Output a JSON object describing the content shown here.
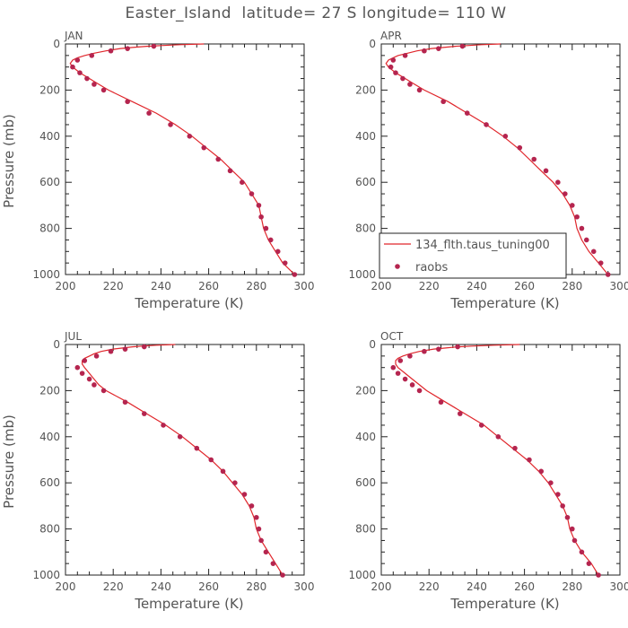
{
  "colors": {
    "model": "#e0262b",
    "obs": "#b5254f",
    "text": "#555555"
  },
  "chart_data": {
    "type": "line",
    "title": "Easter_Island  latitude= 27 S longitude= 110 W",
    "xlabel": "Temperature (K)",
    "ylabel": "Pressure (mb)",
    "xlim": [
      200,
      300
    ],
    "ylim": [
      1000,
      0
    ],
    "x_ticks": [
      200,
      220,
      240,
      260,
      280,
      300
    ],
    "y_ticks": [
      0,
      200,
      400,
      600,
      800,
      1000
    ],
    "legend": {
      "placement": "bottom-right of APR panel",
      "entries": [
        "134_flth.taus_tuning00",
        "raobs"
      ]
    },
    "panels": [
      {
        "name": "JAN",
        "model": {
          "pressure": [
            0,
            3,
            7,
            10,
            15,
            20,
            30,
            40,
            50,
            60,
            70,
            85,
            100,
            125,
            150,
            175,
            200,
            250,
            300,
            350,
            400,
            450,
            500,
            550,
            600,
            650,
            700,
            750,
            800,
            850,
            900,
            950,
            1000
          ],
          "temperature": [
            258,
            248,
            240,
            234,
            228,
            223,
            217,
            212,
            208,
            205,
            203,
            202,
            203,
            206,
            210,
            214,
            218,
            228,
            238,
            246,
            253,
            259,
            265,
            270,
            275,
            278,
            281,
            282,
            283,
            285,
            288,
            291,
            296
          ]
        },
        "obs": {
          "pressure": [
            10,
            20,
            30,
            50,
            70,
            100,
            125,
            150,
            175,
            200,
            250,
            300,
            350,
            400,
            450,
            500,
            550,
            600,
            650,
            700,
            750,
            800,
            850,
            900,
            950,
            1000
          ],
          "temperature": [
            237,
            226,
            219,
            211,
            205,
            203,
            206,
            209,
            212,
            216,
            226,
            235,
            244,
            252,
            258,
            264,
            269,
            274,
            278,
            281,
            282,
            284,
            286,
            289,
            292,
            296
          ]
        }
      },
      {
        "name": "APR",
        "model": {
          "pressure": [
            0,
            3,
            7,
            10,
            15,
            20,
            30,
            40,
            50,
            60,
            70,
            85,
            100,
            125,
            150,
            175,
            200,
            250,
            300,
            350,
            400,
            450,
            500,
            550,
            600,
            650,
            700,
            750,
            800,
            850,
            900,
            950,
            1000
          ],
          "temperature": [
            250,
            242,
            236,
            231,
            226,
            221,
            215,
            211,
            207,
            205,
            203,
            202,
            203,
            206,
            210,
            214,
            218,
            228,
            236,
            244,
            251,
            257,
            262,
            267,
            272,
            276,
            279,
            281,
            282,
            284,
            287,
            291,
            295
          ]
        },
        "obs": {
          "pressure": [
            10,
            20,
            30,
            50,
            70,
            100,
            125,
            150,
            175,
            200,
            250,
            300,
            350,
            400,
            450,
            500,
            550,
            600,
            650,
            700,
            750,
            800,
            850,
            900,
            950,
            1000
          ],
          "temperature": [
            234,
            224,
            218,
            210,
            205,
            204,
            206,
            209,
            212,
            216,
            226,
            236,
            244,
            252,
            258,
            264,
            269,
            274,
            277,
            280,
            282,
            284,
            286,
            289,
            292,
            295
          ]
        }
      },
      {
        "name": "JUL",
        "model": {
          "pressure": [
            0,
            3,
            7,
            10,
            15,
            20,
            30,
            40,
            50,
            60,
            70,
            85,
            100,
            125,
            150,
            175,
            200,
            250,
            300,
            350,
            400,
            450,
            500,
            550,
            600,
            650,
            700,
            750,
            800,
            850,
            900,
            950,
            1000
          ],
          "temperature": [
            246,
            238,
            232,
            228,
            224,
            220,
            215,
            212,
            210,
            208,
            207,
            207,
            208,
            210,
            212,
            214,
            217,
            226,
            234,
            242,
            249,
            255,
            261,
            266,
            270,
            274,
            277,
            279,
            280,
            282,
            285,
            288,
            291
          ]
        },
        "obs": {
          "pressure": [
            10,
            20,
            30,
            50,
            70,
            100,
            125,
            150,
            175,
            200,
            250,
            300,
            350,
            400,
            450,
            500,
            550,
            600,
            650,
            700,
            750,
            800,
            850,
            900,
            950,
            1000
          ],
          "temperature": [
            233,
            225,
            219,
            213,
            208,
            205,
            207,
            210,
            212,
            216,
            225,
            233,
            241,
            248,
            255,
            261,
            266,
            271,
            275,
            278,
            280,
            281,
            282,
            284,
            287,
            291
          ]
        }
      },
      {
        "name": "OCT",
        "model": {
          "pressure": [
            0,
            3,
            7,
            10,
            15,
            20,
            30,
            40,
            50,
            60,
            70,
            85,
            100,
            125,
            150,
            175,
            200,
            250,
            300,
            350,
            400,
            450,
            500,
            550,
            600,
            650,
            700,
            750,
            800,
            850,
            900,
            950,
            1000
          ],
          "temperature": [
            258,
            247,
            238,
            232,
            227,
            222,
            216,
            212,
            209,
            207,
            206,
            206,
            207,
            210,
            213,
            216,
            219,
            227,
            235,
            243,
            249,
            255,
            261,
            266,
            270,
            273,
            276,
            278,
            279,
            281,
            284,
            288,
            291
          ]
        },
        "obs": {
          "pressure": [
            10,
            20,
            30,
            50,
            70,
            100,
            125,
            150,
            175,
            200,
            250,
            300,
            350,
            400,
            450,
            500,
            550,
            600,
            650,
            700,
            750,
            800,
            850,
            900,
            950,
            1000
          ],
          "temperature": [
            232,
            224,
            218,
            212,
            208,
            205,
            207,
            210,
            213,
            216,
            225,
            233,
            242,
            249,
            256,
            262,
            267,
            271,
            274,
            276,
            278,
            280,
            281,
            284,
            287,
            291
          ]
        }
      }
    ]
  }
}
